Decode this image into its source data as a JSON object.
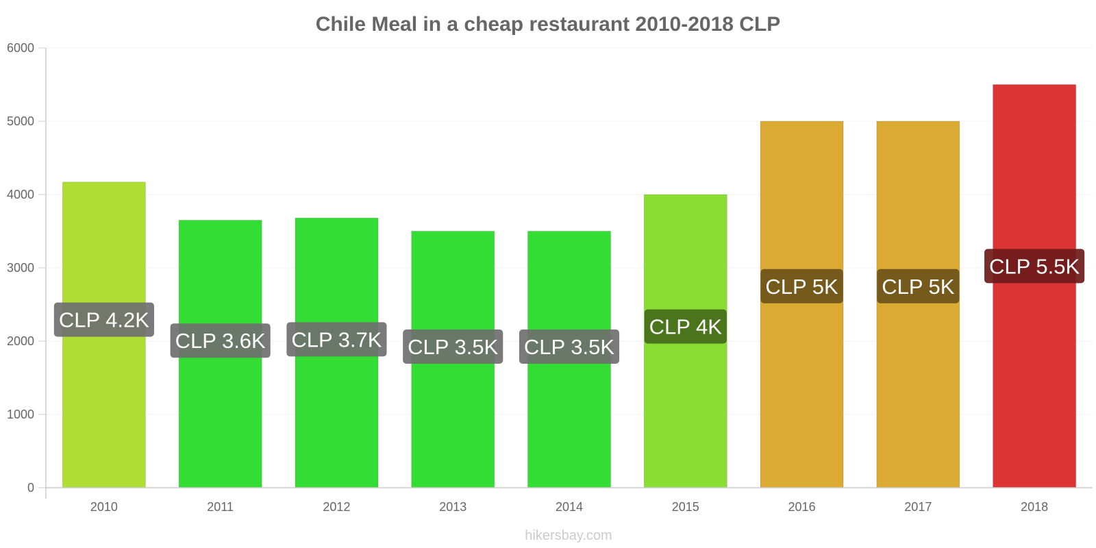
{
  "chart_data": {
    "type": "bar",
    "title": "Chile Meal in a cheap restaurant 2010-2018 CLP",
    "categories": [
      "2010",
      "2011",
      "2012",
      "2013",
      "2014",
      "2015",
      "2016",
      "2017",
      "2018"
    ],
    "values": [
      4170,
      3650,
      3680,
      3500,
      3500,
      4000,
      5000,
      5000,
      5500
    ],
    "data_labels": [
      "CLP 4.2K",
      "CLP 3.6K",
      "CLP 3.7K",
      "CLP 3.5K",
      "CLP 3.5K",
      "CLP 4K",
      "CLP 5K",
      "CLP 5K",
      "CLP 5.5K"
    ],
    "bar_colors": [
      "#aede33",
      "#33dd33",
      "#33dd33",
      "#33dd33",
      "#33dd33",
      "#8ade33",
      "#dbaa33",
      "#dbaa33",
      "#dc3333"
    ],
    "label_bg_colors": [
      "#6f6f6f",
      "#6f6f6f",
      "#6f6f6f",
      "#6f6f6f",
      "#6f6f6f",
      "#456b1a",
      "#6d541a",
      "#6d541a",
      "#6e1a1a"
    ],
    "yticks": [
      "0",
      "1000",
      "2000",
      "3000",
      "4000",
      "5000",
      "6000"
    ],
    "ylim": [
      0,
      6000
    ],
    "xlabel": "",
    "ylabel": "",
    "grid": true,
    "legend": "none"
  },
  "credit": "hikersbay.com"
}
